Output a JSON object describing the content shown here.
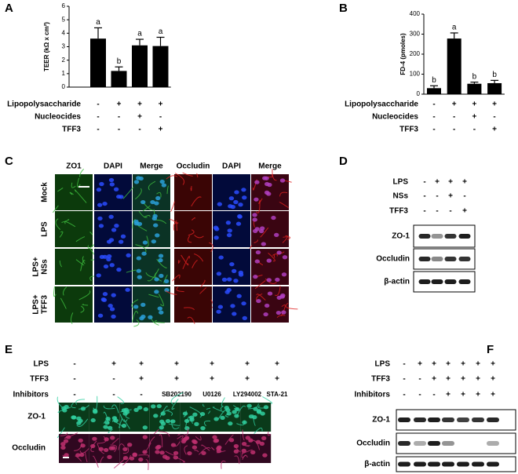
{
  "panels": [
    "A",
    "B",
    "C",
    "D",
    "E",
    "F"
  ],
  "chart_data": [
    {
      "type": "bar",
      "ylabel": "TEER (kΩ x cm²)",
      "categories": [
        null,
        null,
        null,
        null
      ],
      "values": [
        3.6,
        1.2,
        3.1,
        3.05
      ],
      "errors": [
        0.8,
        0.3,
        0.45,
        0.65
      ],
      "annotations": [
        "a",
        "b",
        "a",
        "a"
      ],
      "color": "#000000",
      "ylim": [
        0,
        6
      ],
      "yticks": [
        0,
        1,
        2,
        3,
        4,
        5,
        6
      ],
      "conditions": [
        {
          "label": "Lipopolysaccharide",
          "marks": [
            "-",
            "+",
            "+",
            "+"
          ]
        },
        {
          "label": "Nucleocides",
          "marks": [
            "-",
            "-",
            "+",
            "-"
          ]
        },
        {
          "label": "TFF3",
          "marks": [
            "-",
            "-",
            "-",
            "+"
          ]
        }
      ]
    },
    {
      "type": "bar",
      "ylabel": "FD-4 (pmoles)",
      "categories": [
        null,
        null,
        null,
        null
      ],
      "values": [
        30,
        278,
        52,
        55
      ],
      "errors": [
        12,
        28,
        8,
        14
      ],
      "annotations": [
        "b",
        "a",
        "b",
        "b"
      ],
      "color": "#000000",
      "ylim": [
        0,
        400
      ],
      "yticks": [
        0,
        100,
        200,
        300,
        400
      ],
      "conditions": [
        {
          "label": "Lipopolysaccharide",
          "marks": [
            "-",
            "+",
            "+",
            "+"
          ]
        },
        {
          "label": "Nucleocides",
          "marks": [
            "-",
            "-",
            "+",
            "-"
          ]
        },
        {
          "label": "TFF3",
          "marks": [
            "-",
            "-",
            "-",
            "+"
          ]
        }
      ]
    }
  ],
  "panel_c": {
    "columns": [
      "ZO1",
      "DAPI",
      "Merge",
      "Occludin",
      "DAPI",
      "Merge"
    ],
    "rows": [
      [
        "Mock"
      ],
      [
        "LPS"
      ],
      [
        "LPS+",
        "NSs"
      ],
      [
        "LPS+",
        "TFF3"
      ]
    ]
  },
  "panel_d": {
    "conditions": [
      {
        "label": "LPS",
        "marks": [
          "-",
          "+",
          "+",
          "+"
        ]
      },
      {
        "label": "NSs",
        "marks": [
          "-",
          "-",
          "+",
          "-"
        ]
      },
      {
        "label": "TFF3",
        "marks": [
          "-",
          "-",
          "-",
          "+"
        ]
      }
    ],
    "blots": [
      "ZO-1",
      "Occludin",
      "β-actin"
    ]
  },
  "panel_e": {
    "conditions": [
      {
        "label": "LPS",
        "marks": [
          "-",
          "+",
          "+",
          "+",
          "+",
          "+",
          "+"
        ]
      },
      {
        "label": "TFF3",
        "marks": [
          "-",
          "-",
          "+",
          "+",
          "+",
          "+",
          "+"
        ]
      },
      {
        "label": "Inhibitors",
        "marks": [
          "-",
          "-",
          "-",
          "SB202190",
          "U0126",
          "LY294002",
          "STA-21"
        ]
      }
    ],
    "rows": [
      "ZO-1",
      "Occludin"
    ]
  },
  "panel_f": {
    "conditions": [
      {
        "label": "LPS",
        "marks": [
          "-",
          "+",
          "+",
          "+",
          "+",
          "+",
          "+"
        ]
      },
      {
        "label": "TFF3",
        "marks": [
          "-",
          "-",
          "+",
          "+",
          "+",
          "+",
          "+"
        ]
      },
      {
        "label": "Inhibitors",
        "marks": [
          "-",
          "-",
          "-",
          "+",
          "+",
          "+",
          "+"
        ]
      }
    ],
    "blots": [
      "ZO-1",
      "Occludin",
      "β-actin"
    ]
  }
}
